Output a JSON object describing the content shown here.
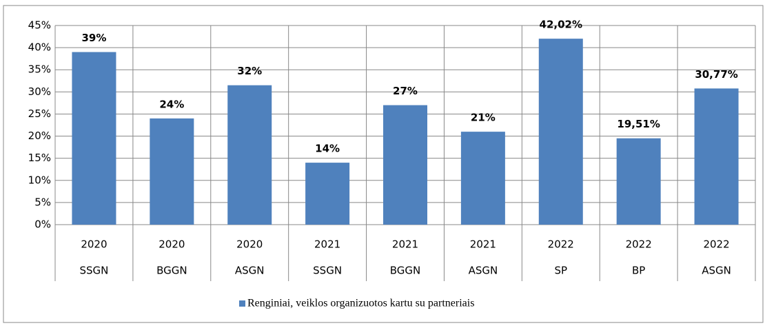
{
  "chart_data": {
    "type": "bar",
    "categories": [
      "2020",
      "2020",
      "2020",
      "2021",
      "2021",
      "2021",
      "2022",
      "2022",
      "2022"
    ],
    "subcategories": [
      "SSGN",
      "BGGN",
      "ASGN",
      "SSGN",
      "BGGN",
      "ASGN",
      "SP",
      "BP",
      "ASGN"
    ],
    "series": [
      {
        "name": "Renginiai, veiklos organizuotos kartu su partneriais",
        "color": "#4f81bd",
        "values": [
          39,
          24,
          31.5,
          14,
          27,
          21,
          42.02,
          19.51,
          30.77
        ],
        "value_labels": [
          "39%",
          "24%",
          "32%",
          "14%",
          "27%",
          "21%",
          "42,02%",
          "19,51%",
          "30,77%"
        ]
      }
    ],
    "ylim": [
      0,
      45
    ],
    "yticks": [
      {
        "value": 0,
        "label": "0%"
      },
      {
        "value": 5,
        "label": "5%"
      },
      {
        "value": 10,
        "label": "10%"
      },
      {
        "value": 15,
        "label": "15%"
      },
      {
        "value": 20,
        "label": "20%"
      },
      {
        "value": 25,
        "label": "25%"
      },
      {
        "value": 30,
        "label": "30%"
      },
      {
        "value": 35,
        "label": "35%"
      },
      {
        "value": 40,
        "label": "40%"
      },
      {
        "value": 45,
        "label": "45%"
      }
    ],
    "grid": true,
    "legend": "bottom"
  }
}
